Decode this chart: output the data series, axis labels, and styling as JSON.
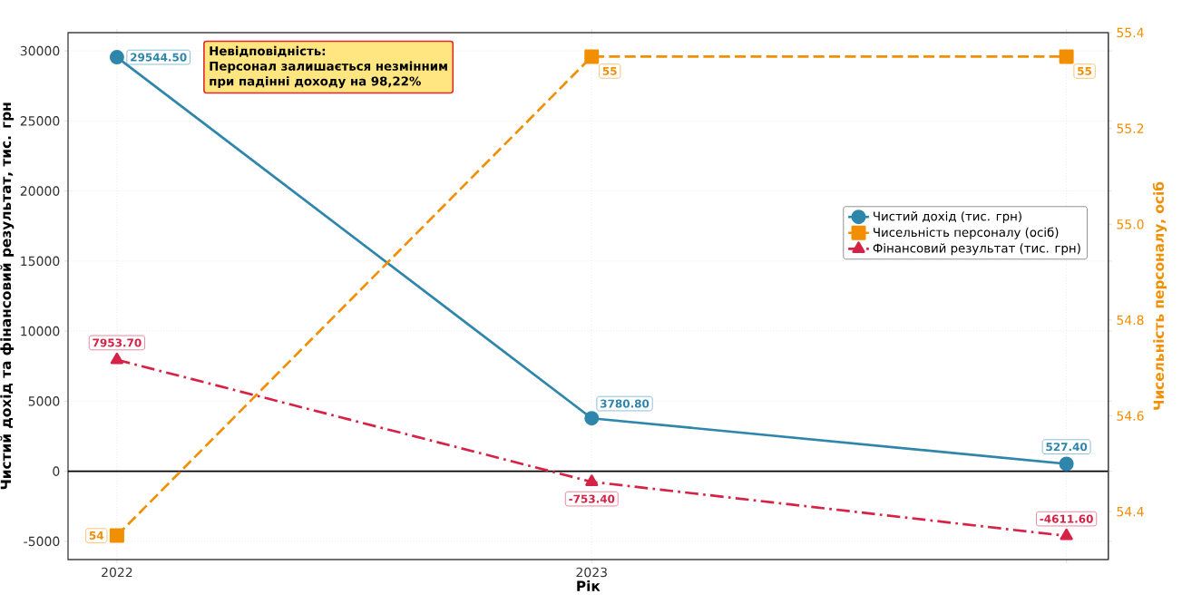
{
  "chart_data": {
    "type": "line",
    "xlabel": "Рік",
    "ylabel": "Чистий дохід та фінансовий результат, тис. грн",
    "y2label": "Чисельність персоналу, осіб",
    "categories": [
      "2022",
      "2023",
      null
    ],
    "ylim": [
      -6300,
      31300
    ],
    "yticks": [
      -5000,
      0,
      5000,
      10000,
      15000,
      20000,
      25000,
      30000
    ],
    "y2lim": [
      54.3,
      55.4
    ],
    "y2ticks": [
      54.4,
      54.6,
      54.8,
      {
        "value": 55.0,
        "label": "55.0"
      },
      55.2,
      55.4
    ],
    "grid": true,
    "legend": "right",
    "series": [
      {
        "name": "Чистий дохід (тис. грн)",
        "color": "#2e86ab",
        "marker": "circle",
        "line_style": "solid",
        "values": [
          29544.5,
          3780.8,
          527.4
        ],
        "value_labels": [
          "29544.50",
          "3780.80",
          "527.40"
        ]
      },
      {
        "name": "Чисельність персоналу (осіб)",
        "color": "#f18f01",
        "marker": "square",
        "line_style": "dashed",
        "axis": "y2",
        "values": [
          54.35,
          55.35,
          55.35
        ],
        "value_labels": [
          "54",
          "55",
          "55"
        ]
      },
      {
        "name": "Фінансовий результат (тис. грн)",
        "color": "#d62246",
        "marker": "triangle",
        "line_style": "dashdot",
        "values": [
          7953.7,
          -753.4,
          -4611.6
        ],
        "value_labels": [
          "7953.70",
          "-753.40",
          "-4611.60"
        ]
      }
    ],
    "ref_lines": [
      {
        "axis": "y",
        "value": 0,
        "color": "#000000"
      }
    ],
    "annotations": [
      "Невідповідність:",
      "Персонал залишається незмінним",
      "при падінні доходу на 98,22%"
    ]
  }
}
